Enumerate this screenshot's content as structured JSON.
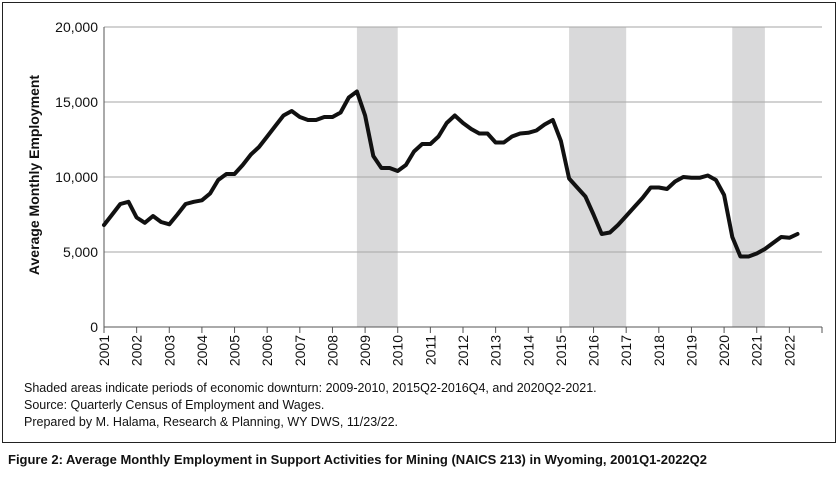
{
  "chart_data": {
    "type": "line",
    "title": "",
    "ylabel": "Average Monthly Employment",
    "xlabel": "",
    "ylim": [
      0,
      20000
    ],
    "yticks": [
      0,
      5000,
      10000,
      15000,
      20000
    ],
    "ytick_labels": [
      "0",
      "5,000",
      "10,000",
      "15,000",
      "20,000"
    ],
    "xlim": [
      2001,
      2023.0
    ],
    "xticks": [
      2001,
      2002,
      2003,
      2004,
      2005,
      2006,
      2007,
      2008,
      2009,
      2010,
      2011,
      2012,
      2013,
      2014,
      2015,
      2016,
      2017,
      2018,
      2019,
      2020,
      2021,
      2022
    ],
    "xtick_labels": [
      "2001",
      "2002",
      "2003",
      "2004",
      "2005",
      "2006",
      "2007",
      "2008",
      "2009",
      "2010",
      "2011",
      "2012",
      "2013",
      "2014",
      "2015",
      "2016",
      "2017",
      "2018",
      "2019",
      "2020",
      "2021",
      "2022"
    ],
    "grid": "horizontal",
    "line_color": "#111111",
    "shade_color": "#d9d9da",
    "shaded_periods": [
      {
        "start": 2008.75,
        "end": 2010.0
      },
      {
        "start": 2015.25,
        "end": 2017.0
      },
      {
        "start": 2020.25,
        "end": 2021.25
      }
    ],
    "series": [
      {
        "x": [
          2001.0,
          2001.25,
          2001.5,
          2001.75,
          2002.0,
          2002.25,
          2002.5,
          2002.75,
          2003.0,
          2003.25,
          2003.5,
          2003.75,
          2004.0,
          2004.25,
          2004.5,
          2004.75,
          2005.0,
          2005.25,
          2005.5,
          2005.75,
          2006.0,
          2006.25,
          2006.5,
          2006.75,
          2007.0,
          2007.25,
          2007.5,
          2007.75,
          2008.0,
          2008.25,
          2008.5,
          2008.75,
          2009.0,
          2009.25,
          2009.5,
          2009.75,
          2010.0,
          2010.25,
          2010.5,
          2010.75,
          2011.0,
          2011.25,
          2011.5,
          2011.75,
          2012.0,
          2012.25,
          2012.5,
          2012.75,
          2013.0,
          2013.25,
          2013.5,
          2013.75,
          2014.0,
          2014.25,
          2014.5,
          2014.75,
          2015.0,
          2015.25,
          2015.5,
          2015.75,
          2016.0,
          2016.25,
          2016.5,
          2016.75,
          2017.0,
          2017.25,
          2017.5,
          2017.75,
          2018.0,
          2018.25,
          2018.5,
          2018.75,
          2019.0,
          2019.25,
          2019.5,
          2019.75,
          2020.0,
          2020.25,
          2020.5,
          2020.75,
          2021.0,
          2021.25,
          2021.5,
          2021.75,
          2022.0,
          2022.25
        ],
        "values": [
          6800,
          7500,
          8200,
          8350,
          7300,
          6950,
          7400,
          7000,
          6850,
          7500,
          8200,
          8350,
          8450,
          8900,
          9800,
          10200,
          10200,
          10800,
          11500,
          12000,
          12700,
          13400,
          14100,
          14400,
          14000,
          13800,
          13800,
          14000,
          14000,
          14300,
          15300,
          15700,
          14100,
          11400,
          10600,
          10600,
          10400,
          10800,
          11700,
          12200,
          12200,
          12700,
          13600,
          14100,
          13600,
          13200,
          12900,
          12900,
          12300,
          12300,
          12700,
          12900,
          12950,
          13100,
          13500,
          13800,
          12400,
          9900,
          9300,
          8700,
          7500,
          6200,
          6300,
          6800,
          7400,
          8000,
          8600,
          9300,
          9300,
          9200,
          9700,
          10000,
          9950,
          9950,
          10100,
          9800,
          8800,
          6000,
          4700,
          4700,
          4900,
          5200,
          5600,
          6000,
          5950,
          6200
        ]
      }
    ]
  },
  "notes": {
    "line1": "Shaded areas indicate periods of economic downturn: 2009-2010, 2015Q2-2016Q4, and 2020Q2-2021.",
    "line2": "Source: Quarterly Census of Employment and Wages.",
    "line3": "Prepared by M. Halama, Research & Planning, WY DWS, 11/23/22."
  },
  "caption": "Figure 2: Average Monthly Employment in Support Activities for Mining (NAICS 213) in Wyoming, 2001Q1-2022Q2"
}
